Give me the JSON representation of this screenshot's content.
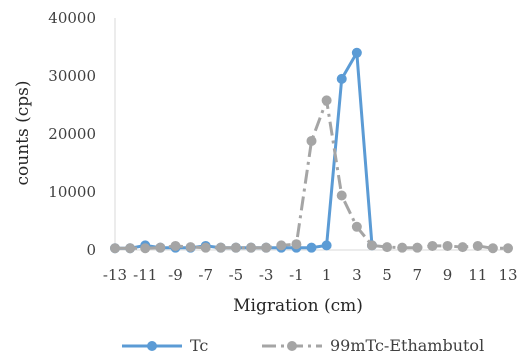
{
  "chart_data": {
    "type": "line",
    "xlabel": "Migration (cm)",
    "ylabel": "counts (cps)",
    "ylim": [
      0,
      40000
    ],
    "yticks": [
      0,
      10000,
      20000,
      30000,
      40000
    ],
    "xticks": [
      -13,
      -11,
      -9,
      -7,
      -5,
      -3,
      -1,
      1,
      3,
      5,
      7,
      9,
      11,
      13
    ],
    "xlim": [
      -13,
      13
    ],
    "grid": false,
    "legend_position": "bottom",
    "series": [
      {
        "name": "Tc",
        "color": "#5B9BD5",
        "dash": "solid",
        "x": [
          -13,
          -12,
          -11,
          -10,
          -9,
          -8,
          -7,
          -6,
          -5,
          -4,
          -3,
          -2,
          -1,
          0,
          1,
          2,
          3,
          4
        ],
        "y": [
          300,
          300,
          800,
          400,
          400,
          400,
          700,
          400,
          400,
          400,
          400,
          400,
          400,
          400,
          800,
          29500,
          34000,
          800
        ]
      },
      {
        "name": "99mTc-Ethambutol",
        "color": "#A5A5A5",
        "dash": "dashdot",
        "x": [
          -13,
          -12,
          -11,
          -10,
          -9,
          -8,
          -7,
          -6,
          -5,
          -4,
          -3,
          -2,
          -1,
          0,
          1,
          2,
          3,
          4,
          5,
          6,
          7,
          8,
          9,
          10,
          11,
          12,
          13
        ],
        "y": [
          300,
          300,
          300,
          400,
          700,
          500,
          400,
          400,
          400,
          400,
          400,
          800,
          1000,
          18800,
          25800,
          9400,
          4000,
          800,
          500,
          400,
          400,
          700,
          700,
          500,
          700,
          300,
          300
        ]
      }
    ]
  }
}
